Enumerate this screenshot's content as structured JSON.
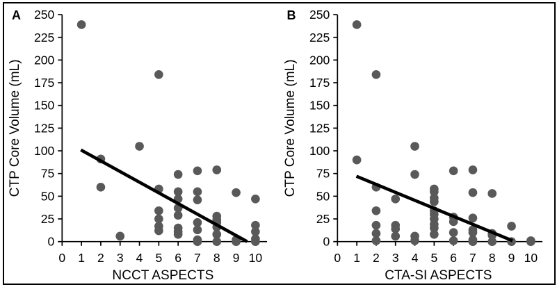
{
  "figure": {
    "panels": [
      {
        "label": "A",
        "xlabel": "NCCT ASPECTS",
        "ylabel": "CTP Core Volume (mL)"
      },
      {
        "label": "B",
        "xlabel": "CTA-SI ASPECTS",
        "ylabel": "CTP Core Volume (mL)"
      }
    ],
    "colors": {
      "dot": "#595959",
      "trendline": "#000000",
      "axis": "#000000",
      "background": "#ffffff",
      "border": "#000000"
    }
  },
  "chart_data": [
    {
      "type": "scatter",
      "panel_label": "A",
      "xlabel": "NCCT ASPECTS",
      "ylabel": "CTP Core Volume (mL)",
      "xlim": [
        0,
        10.6
      ],
      "ylim": [
        0,
        250
      ],
      "xticks": [
        0,
        1,
        2,
        3,
        4,
        5,
        6,
        7,
        8,
        9,
        10
      ],
      "yticks": [
        0,
        25,
        50,
        75,
        100,
        125,
        150,
        175,
        200,
        225,
        250
      ],
      "grid": false,
      "legend": "none",
      "points": [
        [
          1,
          239
        ],
        [
          2,
          91
        ],
        [
          2,
          60
        ],
        [
          3,
          6
        ],
        [
          4,
          105
        ],
        [
          5,
          184
        ],
        [
          5,
          58
        ],
        [
          5,
          34
        ],
        [
          5,
          25
        ],
        [
          5,
          17
        ],
        [
          5,
          12
        ],
        [
          6,
          74
        ],
        [
          6,
          55
        ],
        [
          6,
          47
        ],
        [
          6,
          37
        ],
        [
          6,
          29
        ],
        [
          6,
          15
        ],
        [
          6,
          11
        ],
        [
          6,
          8
        ],
        [
          7,
          78
        ],
        [
          7,
          55
        ],
        [
          7,
          46
        ],
        [
          7,
          21
        ],
        [
          7,
          13
        ],
        [
          7,
          2
        ],
        [
          7,
          0
        ],
        [
          8,
          79
        ],
        [
          8,
          28
        ],
        [
          8,
          24
        ],
        [
          8,
          21
        ],
        [
          8,
          16
        ],
        [
          8,
          8
        ],
        [
          8,
          0
        ],
        [
          9,
          54
        ],
        [
          9,
          2
        ],
        [
          9,
          0
        ],
        [
          10,
          47
        ],
        [
          10,
          18
        ],
        [
          10,
          11
        ],
        [
          10,
          3
        ],
        [
          10,
          0
        ]
      ],
      "trendline": {
        "x1": 0.97,
        "y1": 101,
        "x2": 9.57,
        "y2": 0
      }
    },
    {
      "type": "scatter",
      "panel_label": "B",
      "xlabel": "CTA-SI ASPECTS",
      "ylabel": "CTP Core Volume (mL)",
      "xlim": [
        0,
        10.6
      ],
      "ylim": [
        0,
        250
      ],
      "xticks": [
        0,
        1,
        2,
        3,
        4,
        5,
        6,
        7,
        8,
        9,
        10
      ],
      "yticks": [
        0,
        25,
        50,
        75,
        100,
        125,
        150,
        175,
        200,
        225,
        250
      ],
      "grid": false,
      "legend": "none",
      "points": [
        [
          1,
          239
        ],
        [
          1,
          90
        ],
        [
          2,
          184
        ],
        [
          2,
          60
        ],
        [
          2,
          34
        ],
        [
          2,
          18
        ],
        [
          2,
          9
        ],
        [
          2,
          1
        ],
        [
          3,
          47
        ],
        [
          3,
          18
        ],
        [
          3,
          14
        ],
        [
          3,
          6
        ],
        [
          4,
          105
        ],
        [
          4,
          74
        ],
        [
          4,
          6
        ],
        [
          4,
          1
        ],
        [
          5,
          58
        ],
        [
          5,
          55
        ],
        [
          5,
          48
        ],
        [
          5,
          44
        ],
        [
          5,
          34
        ],
        [
          5,
          30
        ],
        [
          5,
          25
        ],
        [
          5,
          19
        ],
        [
          5,
          15
        ],
        [
          5,
          8
        ],
        [
          6,
          78
        ],
        [
          6,
          27
        ],
        [
          6,
          22
        ],
        [
          6,
          10
        ],
        [
          6,
          1
        ],
        [
          7,
          79
        ],
        [
          7,
          54
        ],
        [
          7,
          26
        ],
        [
          7,
          13
        ],
        [
          7,
          10
        ],
        [
          7,
          2
        ],
        [
          7,
          0
        ],
        [
          8,
          53
        ],
        [
          8,
          9
        ],
        [
          8,
          7
        ],
        [
          8,
          0
        ],
        [
          9,
          17
        ],
        [
          9,
          0
        ],
        [
          10,
          1
        ],
        [
          10,
          0
        ]
      ],
      "trendline": {
        "x1": 0.98,
        "y1": 72,
        "x2": 9.05,
        "y2": 1
      }
    }
  ]
}
